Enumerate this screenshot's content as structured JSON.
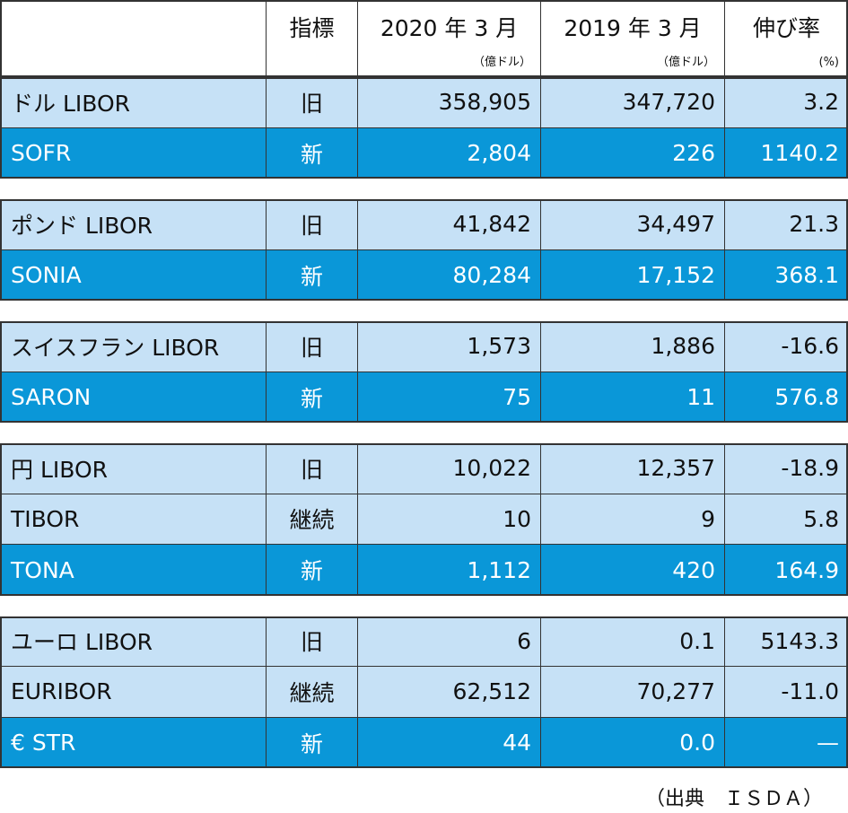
{
  "header": {
    "columns": [
      {
        "title": "指標"
      },
      {
        "title": "2020 年 3 月",
        "unit": "（億ドル）"
      },
      {
        "title": "2019 年 3 月",
        "unit": "（億ドル）"
      },
      {
        "title": "伸び率",
        "unit": "(%)"
      }
    ]
  },
  "groups": [
    {
      "rows": [
        [
          "ドル LIBOR",
          "旧",
          "358,905",
          "347,720",
          "3.2"
        ],
        [
          "SOFR",
          "新",
          "2,804",
          "226",
          "1140.2"
        ]
      ]
    },
    {
      "rows": [
        [
          "ポンド LIBOR",
          "旧",
          "41,842",
          "34,497",
          "21.3"
        ],
        [
          "SONIA",
          "新",
          "80,284",
          "17,152",
          "368.1"
        ]
      ]
    },
    {
      "rows": [
        [
          "スイスフラン LIBOR",
          "旧",
          "1,573",
          "1,886",
          "-16.6"
        ],
        [
          "SARON",
          "新",
          "75",
          "11",
          "576.8"
        ]
      ]
    },
    {
      "rows": [
        [
          "円 LIBOR",
          "旧",
          "10,022",
          "12,357",
          "-18.9"
        ],
        [
          "TIBOR",
          "継続",
          "10",
          "9",
          "5.8"
        ],
        [
          "TONA",
          "新",
          "1,112",
          "420",
          "164.9"
        ]
      ]
    },
    {
      "rows": [
        [
          "ユーロ LIBOR",
          "旧",
          "6",
          "0.1",
          "5143.3"
        ],
        [
          "EURIBOR",
          "継続",
          "62,512",
          "70,277",
          "-11.0"
        ],
        [
          "€ STR",
          "新",
          "44",
          "0.0",
          "—"
        ]
      ]
    }
  ],
  "source": "（出典　ＩＳＤＡ）"
}
